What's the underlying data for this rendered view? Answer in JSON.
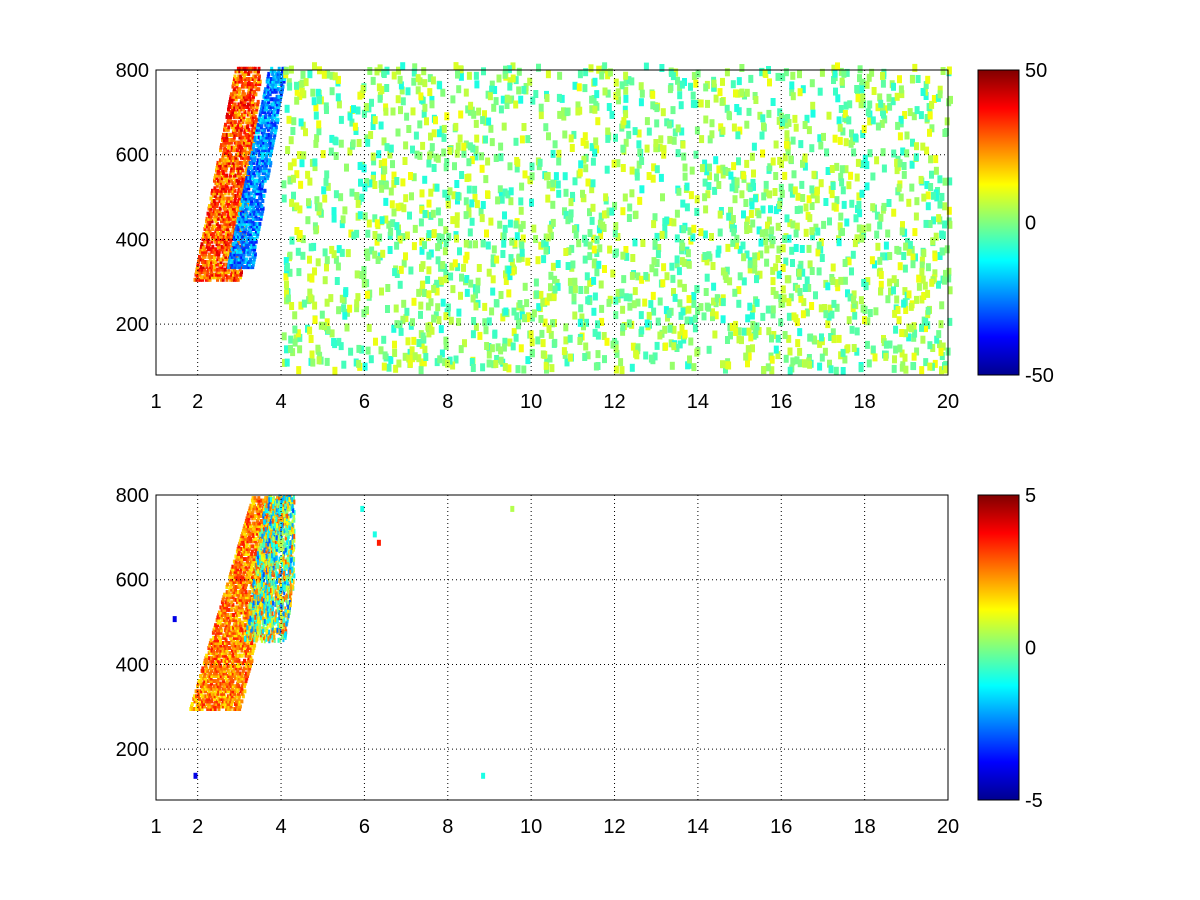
{
  "chart_data": [
    {
      "type": "heatmap",
      "xlim": [
        1,
        20
      ],
      "ylim": [
        80,
        800
      ],
      "x_ticks": [
        1,
        2,
        4,
        6,
        8,
        10,
        12,
        14,
        16,
        18,
        20
      ],
      "y_ticks": [
        200,
        400,
        600,
        800
      ],
      "grid": true,
      "colormap": "jet",
      "color_range": [
        -50,
        50
      ],
      "colorbar_ticks": [
        50,
        0,
        -50
      ],
      "features": [
        {
          "kind": "positive_band",
          "x_start": [
            1.9,
            2.9
          ],
          "x_end": [
            3.0,
            3.5
          ],
          "y_range": [
            300,
            800
          ],
          "value": 35
        },
        {
          "kind": "negative_band",
          "x_start": [
            2.7,
            3.7
          ],
          "x_end": [
            3.3,
            4.1
          ],
          "y_range": [
            330,
            800
          ],
          "value": -30
        },
        {
          "kind": "sparse_noise",
          "x_range": [
            4,
            20
          ],
          "y_range": [
            80,
            800
          ],
          "value_range": [
            -10,
            12
          ]
        }
      ]
    },
    {
      "type": "heatmap",
      "xlim": [
        1,
        20
      ],
      "ylim": [
        80,
        800
      ],
      "x_ticks": [
        1,
        2,
        4,
        6,
        8,
        10,
        12,
        14,
        16,
        18,
        20
      ],
      "y_ticks": [
        200,
        400,
        600,
        800
      ],
      "grid": true,
      "colormap": "jet",
      "color_range": [
        -5,
        5
      ],
      "colorbar_ticks": [
        5,
        0,
        -5
      ],
      "features": [
        {
          "kind": "positive_band",
          "x_start": [
            1.8,
            3.3
          ],
          "x_end": [
            3.0,
            4.2
          ],
          "y_range": [
            290,
            790
          ],
          "value": 3
        },
        {
          "kind": "mixed_cluster",
          "x_range": [
            2.5,
            4.3
          ],
          "y_range": [
            450,
            790
          ],
          "value_range": [
            -3,
            3
          ]
        },
        {
          "kind": "isolated_points",
          "points": [
            [
              9.5,
              760,
              0.5
            ],
            [
              6.3,
              680,
              3.5
            ],
            [
              6.2,
              700,
              -1
            ],
            [
              5.9,
              760,
              -1
            ],
            [
              8.8,
              130,
              -1
            ],
            [
              1.4,
              500,
              -4
            ],
            [
              1.9,
              130,
              -4
            ]
          ]
        }
      ]
    }
  ]
}
